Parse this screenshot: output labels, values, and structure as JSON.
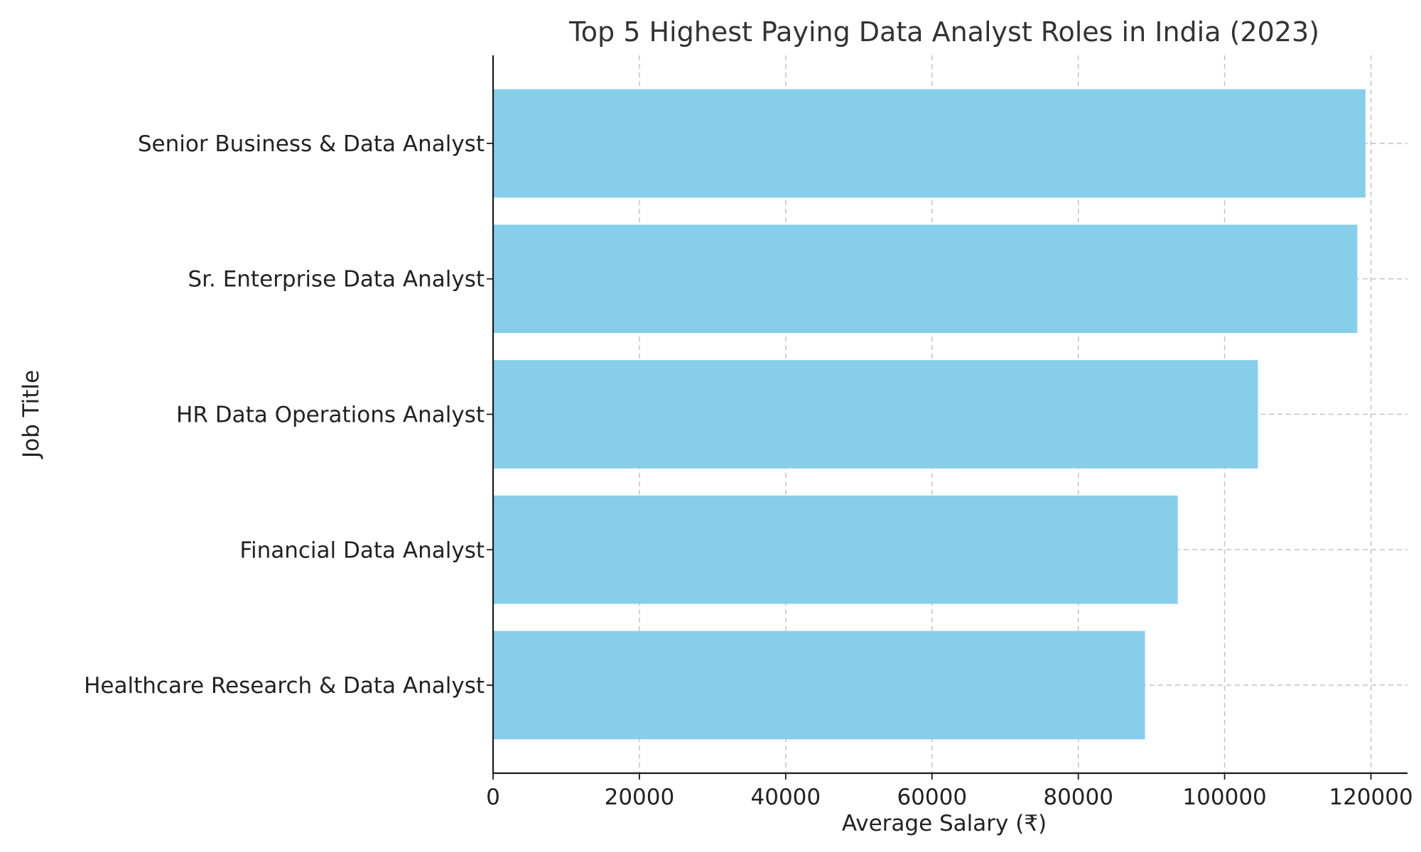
{
  "chart_data": {
    "type": "bar",
    "orientation": "horizontal",
    "title": "Top 5 Highest Paying Data Analyst Roles in India (2023)",
    "xlabel": "Average Salary (₹)",
    "ylabel": "Job Title",
    "categories": [
      "Senior Business & Data Analyst",
      "Sr. Enterprise Data Analyst",
      "HR Data Operations Analyst",
      "Financial Data Analyst",
      "Healthcare Research & Data Analyst"
    ],
    "values": [
      119250,
      118140,
      104550,
      93600,
      89120
    ],
    "xlim": [
      0,
      125000
    ],
    "xticks": [
      0,
      20000,
      40000,
      60000,
      80000,
      100000,
      120000
    ],
    "xtick_labels": [
      "0",
      "20000",
      "40000",
      "60000",
      "80000",
      "100000",
      "120000"
    ],
    "grid": true,
    "colors": {
      "bar": "#87CEEB",
      "grid": "#c4c4c4",
      "axis": "#1a1a1a",
      "title": "#333333"
    }
  }
}
